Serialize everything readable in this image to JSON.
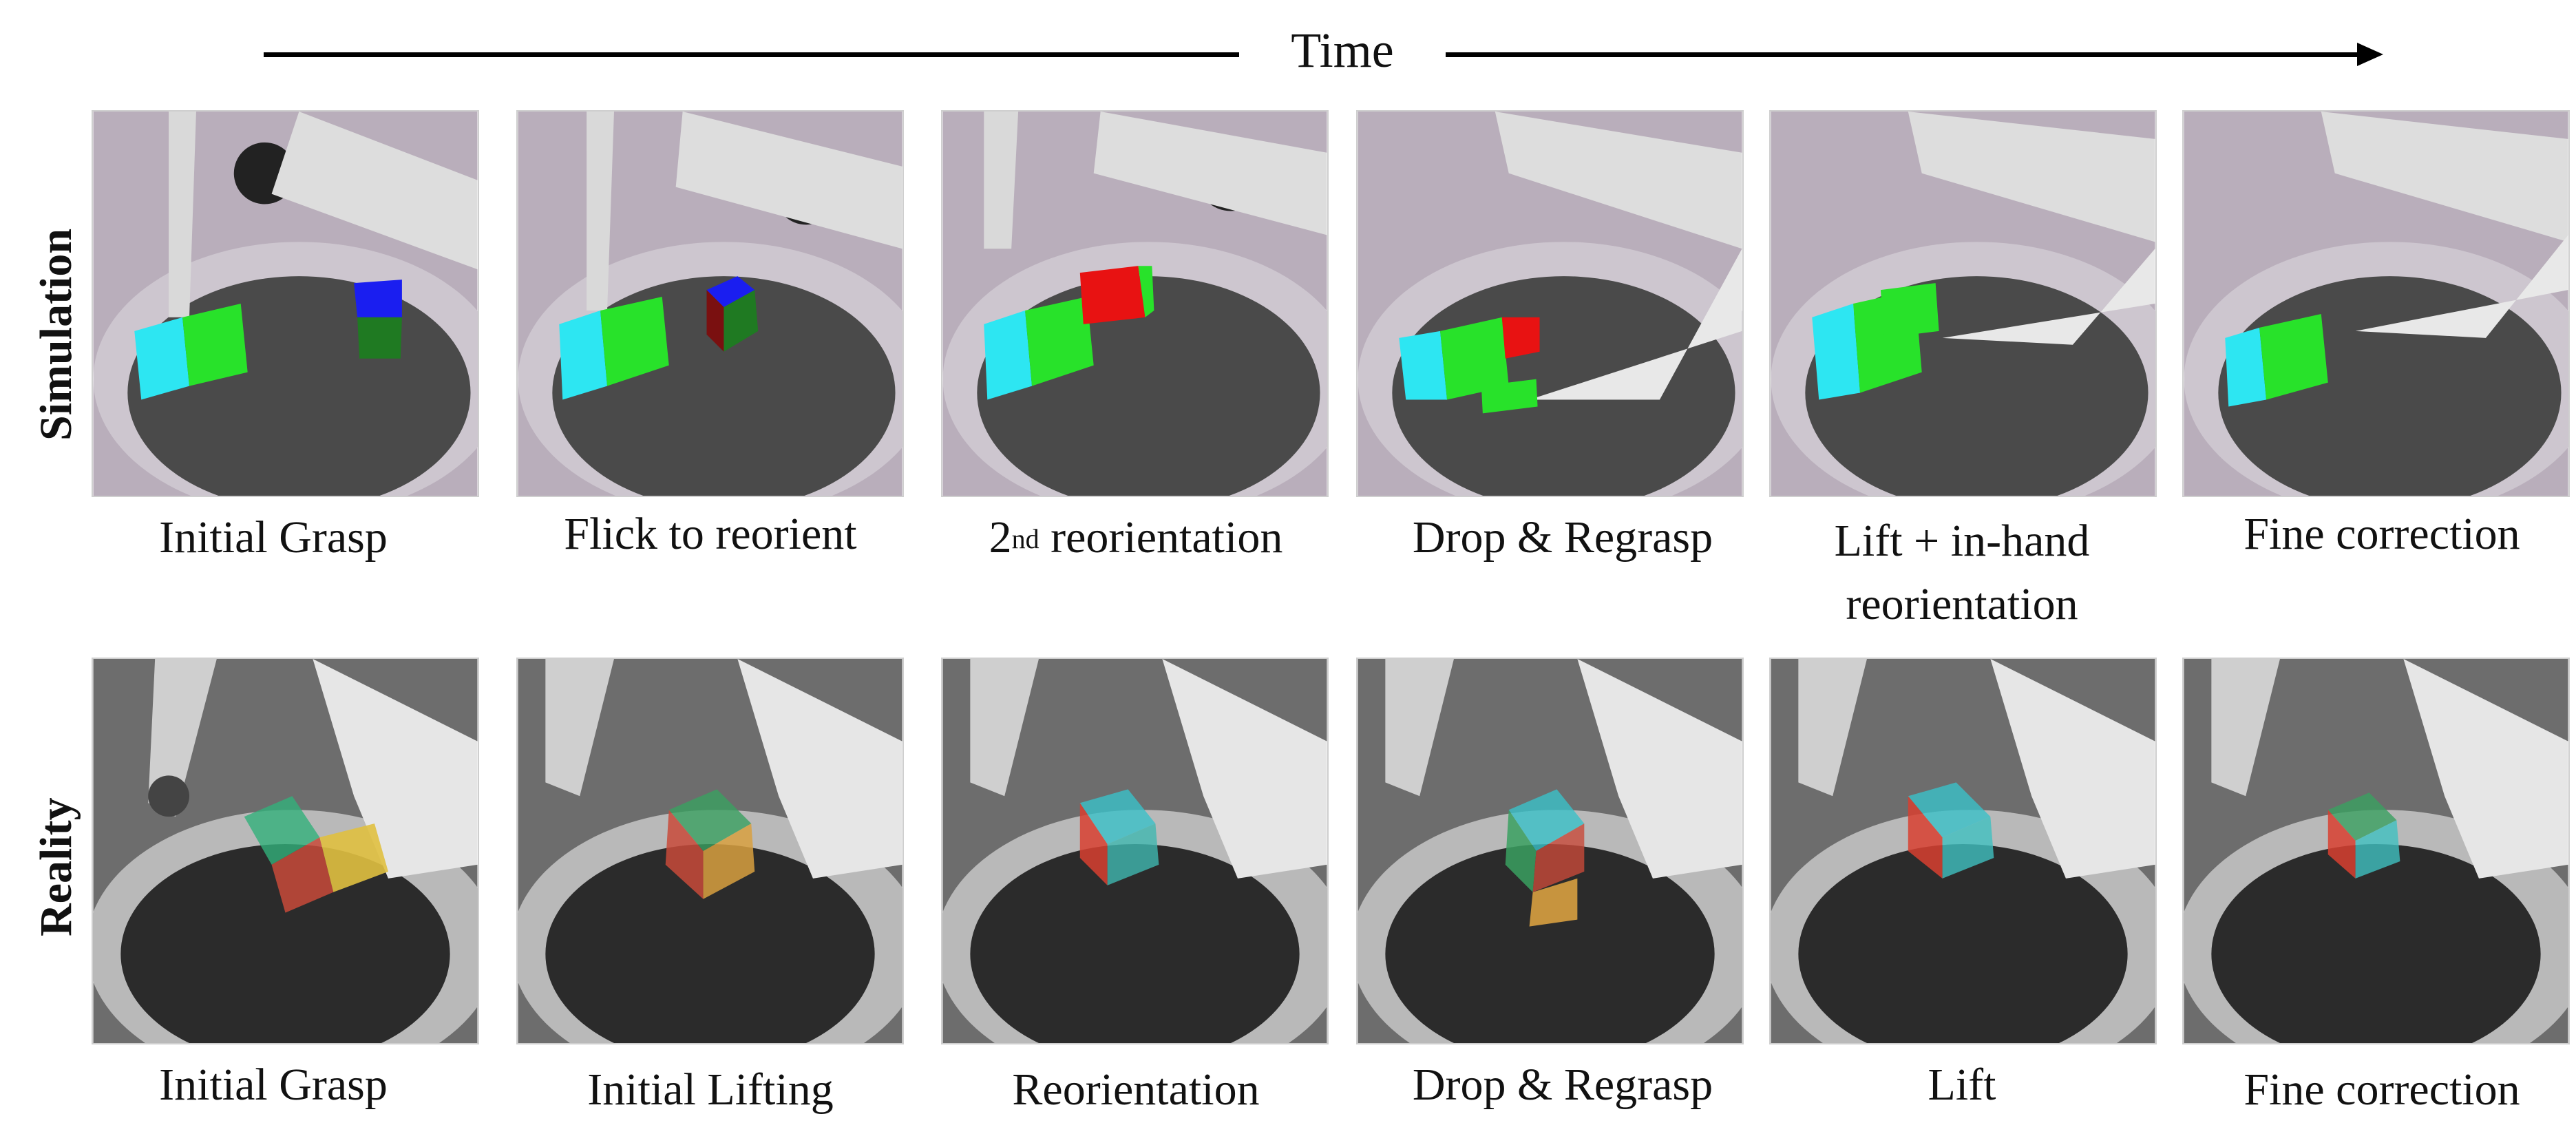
{
  "time_label": "Time",
  "rows": {
    "simulation_label": "Simulation",
    "reality_label": "Reality"
  },
  "simulation_captions": [
    {
      "text": "Initial Grasp"
    },
    {
      "text": "Flick to reorient"
    },
    {
      "prefix": "2",
      "sup": "nd",
      "suffix": " reorientation"
    },
    {
      "text": "Drop & Regrasp"
    },
    {
      "text": "Lift + in-hand reorientation"
    },
    {
      "text": "Fine correction"
    }
  ],
  "reality_captions": [
    {
      "text": "Initial Grasp"
    },
    {
      "text": "Initial Lifting"
    },
    {
      "text": "Reorientation"
    },
    {
      "text": "Drop & Regrasp"
    },
    {
      "text": "Lift"
    },
    {
      "text": "Fine correction"
    }
  ],
  "colors": {
    "sim_background": "#b9aebb",
    "sim_bowl": "#4a4a4a",
    "real_background": "#6d6d6d",
    "real_bowl": "#2b2b2b",
    "cube_cyan": "#2de6f2",
    "cube_green": "#28e22a",
    "cube_blue": "#1a1ef0",
    "cube_red": "#e81212"
  }
}
